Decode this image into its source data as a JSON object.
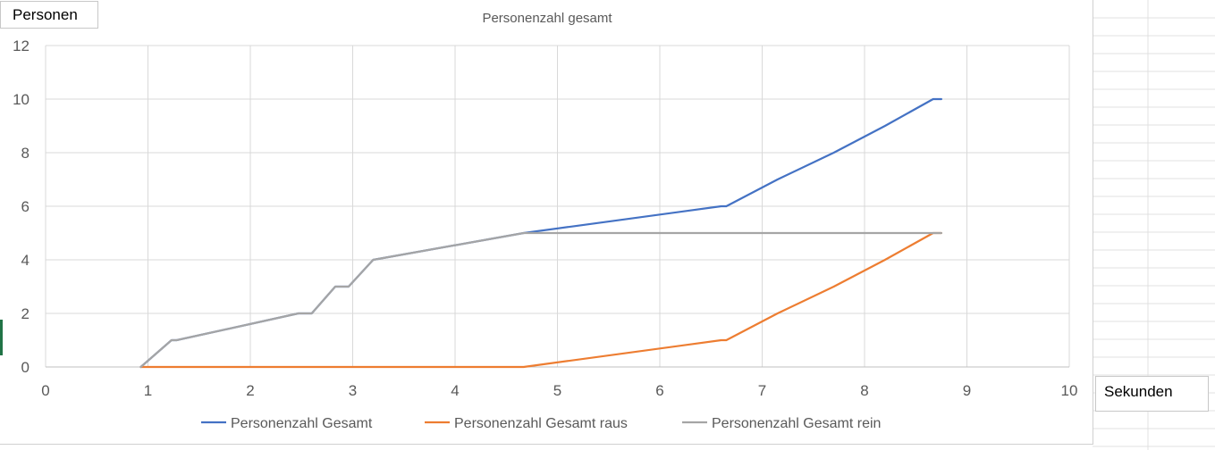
{
  "chart_data": {
    "type": "line",
    "title": "Personenzahl gesamt",
    "xlabel": "Sekunden",
    "ylabel": "Personen",
    "xlim": [
      0,
      10
    ],
    "ylim": [
      0,
      12
    ],
    "x_ticks": [
      "0",
      "1",
      "2",
      "3",
      "4",
      "5",
      "6",
      "7",
      "8",
      "9",
      "10"
    ],
    "y_ticks": [
      "0",
      "2",
      "4",
      "6",
      "8",
      "10",
      "12"
    ],
    "grid": true,
    "legend_position": "bottom",
    "series": [
      {
        "name": "Personenzahl Gesamt",
        "color": "#4472C4",
        "points": [
          [
            0.93,
            0
          ],
          [
            1.23,
            1
          ],
          [
            1.28,
            1
          ],
          [
            2.47,
            2
          ],
          [
            2.6,
            2
          ],
          [
            2.83,
            3
          ],
          [
            2.96,
            3
          ],
          [
            3.2,
            4
          ],
          [
            4.67,
            5
          ],
          [
            6.6,
            6
          ],
          [
            6.65,
            6
          ],
          [
            7.15,
            7
          ],
          [
            7.7,
            8
          ],
          [
            8.2,
            9
          ],
          [
            8.67,
            10
          ],
          [
            8.75,
            10
          ]
        ]
      },
      {
        "name": "Personenzahl Gesamt raus",
        "color": "#ED7D31",
        "points": [
          [
            0.93,
            0
          ],
          [
            4.67,
            0
          ],
          [
            6.6,
            1
          ],
          [
            6.65,
            1
          ],
          [
            7.15,
            2
          ],
          [
            7.7,
            3
          ],
          [
            8.2,
            4
          ],
          [
            8.67,
            5
          ],
          [
            8.75,
            5
          ]
        ]
      },
      {
        "name": "Personenzahl Gesamt rein",
        "color": "#A5A5A5",
        "points": [
          [
            0.93,
            0
          ],
          [
            1.23,
            1
          ],
          [
            1.28,
            1
          ],
          [
            2.47,
            2
          ],
          [
            2.6,
            2
          ],
          [
            2.83,
            3
          ],
          [
            2.96,
            3
          ],
          [
            3.2,
            4
          ],
          [
            4.67,
            5
          ],
          [
            8.75,
            5
          ]
        ]
      }
    ]
  }
}
